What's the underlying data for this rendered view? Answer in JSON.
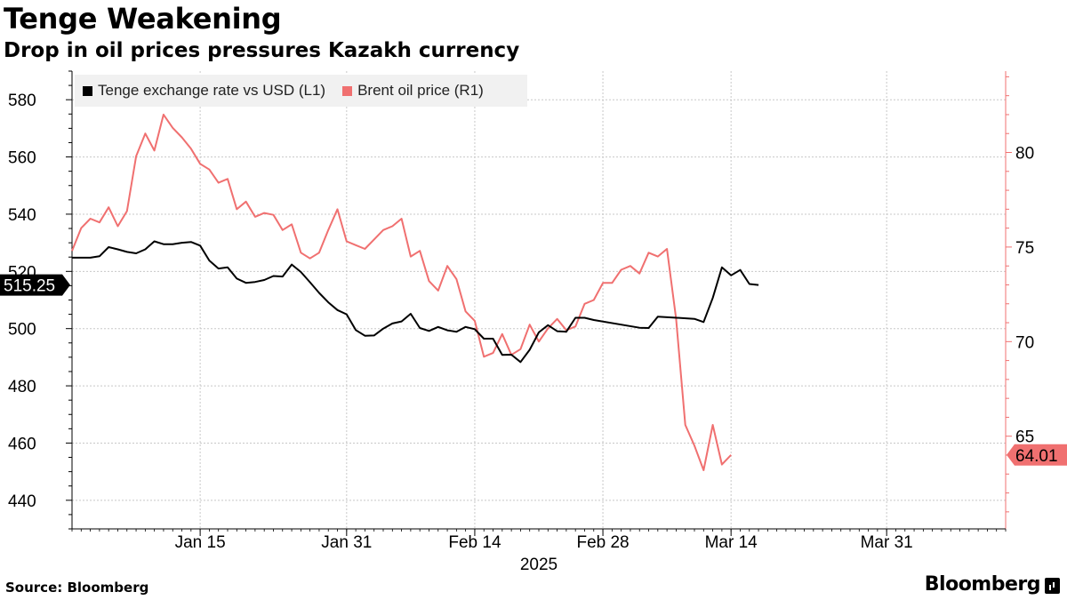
{
  "header": {
    "title": "Tenge Weakening",
    "subtitle": "Drop in oil prices pressures Kazakh currency"
  },
  "footer": {
    "source": "Source: Bloomberg",
    "brand": "Bloomberg"
  },
  "colors": {
    "tenge": "#000000",
    "brent": "#f07070",
    "grid": "#c8c8c8"
  },
  "chart_data": {
    "type": "line",
    "title": "Tenge Weakening",
    "subtitle": "Drop in oil prices pressures Kazakh currency",
    "xlabel": "2025",
    "x_range": [
      "2025-01-02",
      "2025-04-14"
    ],
    "x_ticks": [
      {
        "label": "Jan 15",
        "day": 14
      },
      {
        "label": "Jan 31",
        "day": 30
      },
      {
        "label": "Feb 14",
        "day": 44
      },
      {
        "label": "Feb 28",
        "day": 58
      },
      {
        "label": "Mar 14",
        "day": 72
      },
      {
        "label": "Mar 31",
        "day": 89
      }
    ],
    "y_left": {
      "label": "L1",
      "min": 430,
      "max": 590,
      "ticks": [
        440,
        460,
        480,
        500,
        520,
        540,
        560,
        580
      ]
    },
    "y_right": {
      "label": "R1",
      "min": 60.1,
      "max": 84.3,
      "ticks": [
        65,
        70,
        75,
        80
      ]
    },
    "legend": [
      {
        "label": "Tenge exchange rate vs USD (L1)",
        "color": "#000000"
      },
      {
        "label": "Brent oil price (R1)",
        "color": "#f07070"
      }
    ],
    "series": [
      {
        "name": "Tenge exchange rate vs USD (L1)",
        "axis": "left",
        "last_label": "515.25",
        "points": [
          [
            0,
            524.8
          ],
          [
            2,
            524.8
          ],
          [
            3,
            525.3
          ],
          [
            4,
            528.5
          ],
          [
            5,
            527.7
          ],
          [
            6,
            526.8
          ],
          [
            7,
            526.3
          ],
          [
            8,
            527.7
          ],
          [
            9,
            530.5
          ],
          [
            10,
            529.5
          ],
          [
            11,
            529.5
          ],
          [
            12,
            530.0
          ],
          [
            13,
            530.3
          ],
          [
            14,
            529.0
          ],
          [
            15,
            523.8
          ],
          [
            16,
            521.0
          ],
          [
            17,
            521.4
          ],
          [
            18,
            517.5
          ],
          [
            19,
            516.0
          ],
          [
            20,
            516.3
          ],
          [
            21,
            517.0
          ],
          [
            22,
            518.4
          ],
          [
            23,
            518.2
          ],
          [
            24,
            522.4
          ],
          [
            25,
            519.8
          ],
          [
            26,
            516.2
          ],
          [
            27,
            512.5
          ],
          [
            28,
            509.2
          ],
          [
            29,
            506.5
          ],
          [
            30,
            505.0
          ],
          [
            31,
            499.5
          ],
          [
            32,
            497.5
          ],
          [
            33,
            497.6
          ],
          [
            34,
            500.0
          ],
          [
            35,
            501.8
          ],
          [
            36,
            502.5
          ],
          [
            37,
            505.2
          ],
          [
            38,
            500.2
          ],
          [
            39,
            499.2
          ],
          [
            40,
            500.6
          ],
          [
            41,
            499.4
          ],
          [
            42,
            498.9
          ],
          [
            43,
            500.6
          ],
          [
            44,
            499.8
          ],
          [
            45,
            496.5
          ],
          [
            46,
            496.5
          ],
          [
            47,
            490.8
          ],
          [
            48,
            490.9
          ],
          [
            49,
            488.3
          ],
          [
            50,
            492.6
          ],
          [
            51,
            498.7
          ],
          [
            52,
            501.2
          ],
          [
            53,
            499.1
          ],
          [
            54,
            498.9
          ],
          [
            55,
            503.8
          ],
          [
            56,
            503.8
          ],
          [
            57,
            503.0
          ],
          [
            62,
            500.3
          ],
          [
            63,
            500.2
          ],
          [
            64,
            504.2
          ],
          [
            68,
            503.4
          ],
          [
            69,
            502.3
          ],
          [
            70,
            510.7
          ],
          [
            71,
            521.4
          ],
          [
            72,
            518.6
          ],
          [
            73,
            520.5
          ],
          [
            74,
            515.6
          ],
          [
            75,
            515.25
          ]
        ]
      },
      {
        "name": "Brent oil price (R1)",
        "axis": "right",
        "last_label": "64.01",
        "points": [
          [
            0,
            74.8
          ],
          [
            1,
            76.0
          ],
          [
            2,
            76.5
          ],
          [
            3,
            76.3
          ],
          [
            4,
            77.1
          ],
          [
            5,
            76.1
          ],
          [
            6,
            76.9
          ],
          [
            7,
            79.8
          ],
          [
            8,
            81.0
          ],
          [
            9,
            80.1
          ],
          [
            10,
            82.0
          ],
          [
            11,
            81.3
          ],
          [
            12,
            80.8
          ],
          [
            13,
            80.2
          ],
          [
            14,
            79.4
          ],
          [
            15,
            79.1
          ],
          [
            16,
            78.4
          ],
          [
            17,
            78.6
          ],
          [
            18,
            77.0
          ],
          [
            19,
            77.4
          ],
          [
            20,
            76.6
          ],
          [
            21,
            76.8
          ],
          [
            22,
            76.7
          ],
          [
            23,
            75.9
          ],
          [
            24,
            76.2
          ],
          [
            25,
            74.7
          ],
          [
            26,
            74.4
          ],
          [
            27,
            74.7
          ],
          [
            28,
            75.9
          ],
          [
            29,
            77.0
          ],
          [
            30,
            75.3
          ],
          [
            31,
            75.1
          ],
          [
            32,
            74.9
          ],
          [
            33,
            75.4
          ],
          [
            34,
            75.9
          ],
          [
            35,
            76.1
          ],
          [
            36,
            76.5
          ],
          [
            37,
            74.5
          ],
          [
            38,
            74.8
          ],
          [
            39,
            73.2
          ],
          [
            40,
            72.7
          ],
          [
            41,
            74.0
          ],
          [
            42,
            73.3
          ],
          [
            43,
            71.6
          ],
          [
            44,
            71.1
          ],
          [
            45,
            69.2
          ],
          [
            46,
            69.4
          ],
          [
            47,
            70.4
          ],
          [
            48,
            69.3
          ],
          [
            49,
            69.6
          ],
          [
            50,
            70.9
          ],
          [
            51,
            70.0
          ],
          [
            52,
            70.7
          ],
          [
            53,
            71.2
          ],
          [
            54,
            70.6
          ],
          [
            55,
            70.8
          ],
          [
            56,
            72.0
          ],
          [
            57,
            72.2
          ],
          [
            58,
            73.1
          ],
          [
            59,
            73.1
          ],
          [
            60,
            73.8
          ],
          [
            61,
            74.0
          ],
          [
            62,
            73.6
          ],
          [
            63,
            74.7
          ],
          [
            64,
            74.5
          ],
          [
            65,
            74.9
          ],
          [
            66,
            71.2
          ],
          [
            67,
            65.6
          ],
          [
            68,
            64.5
          ],
          [
            69,
            63.2
          ],
          [
            70,
            65.6
          ],
          [
            71,
            63.5
          ],
          [
            72,
            64.01
          ]
        ]
      }
    ]
  }
}
